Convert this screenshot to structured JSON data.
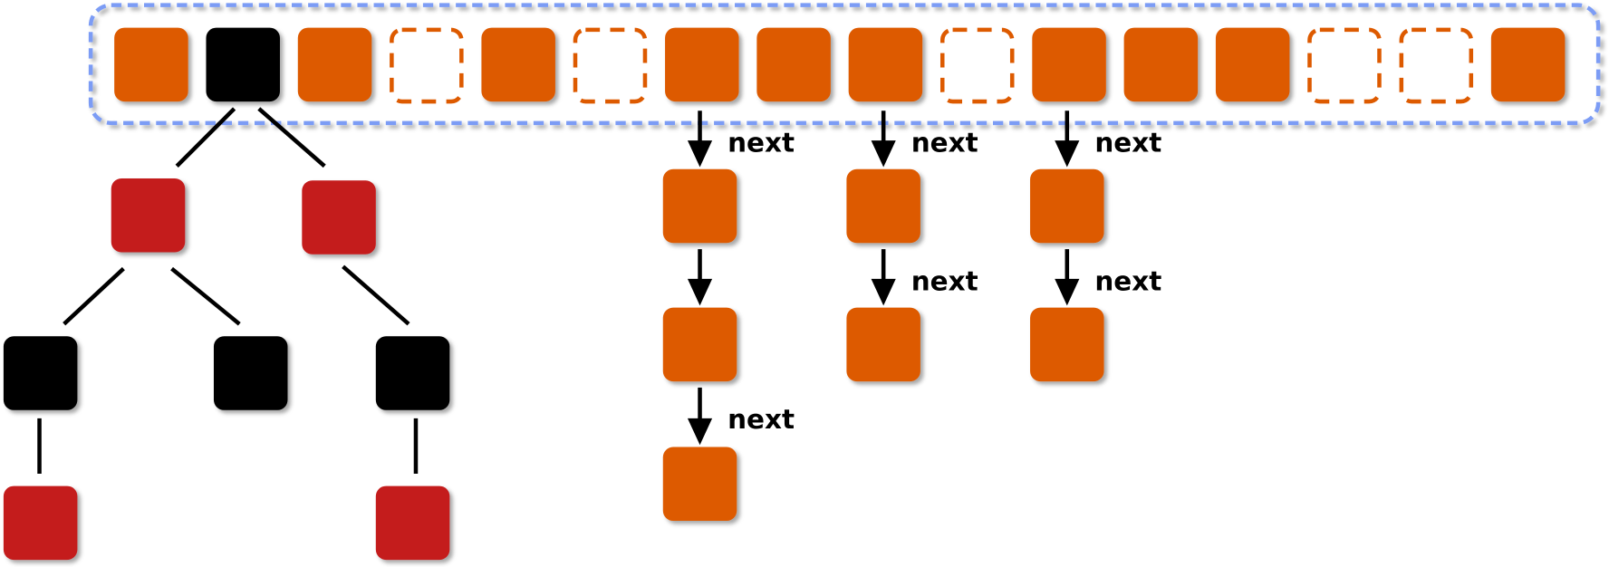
{
  "colors": {
    "orange": "#dd5a00",
    "black": "#000000",
    "red": "#c41c1e",
    "container_border": "#7b9cf5"
  },
  "array": {
    "slots": [
      "filled",
      "tree",
      "filled",
      "empty",
      "filled",
      "empty",
      "filled",
      "filled",
      "filled",
      "empty",
      "filled",
      "filled",
      "filled",
      "empty",
      "empty",
      "filled"
    ]
  },
  "tree": {
    "nodes": [
      {
        "color": "red",
        "level": 1,
        "col": 0
      },
      {
        "color": "red",
        "level": 1,
        "col": 1
      },
      {
        "color": "black",
        "level": 2,
        "col": 0
      },
      {
        "color": "black",
        "level": 2,
        "col": 1
      },
      {
        "color": "black",
        "level": 2,
        "col": 2
      },
      {
        "color": "red",
        "level": 3,
        "col": 0
      },
      {
        "color": "red",
        "level": 3,
        "col": 2
      }
    ]
  },
  "chains": [
    {
      "slot": 6,
      "length": 3,
      "labels": [
        "next",
        "",
        "next"
      ]
    },
    {
      "slot": 8,
      "length": 2,
      "labels": [
        "next",
        "next"
      ]
    },
    {
      "slot": 10,
      "length": 2,
      "labels": [
        "next",
        "next"
      ]
    }
  ]
}
